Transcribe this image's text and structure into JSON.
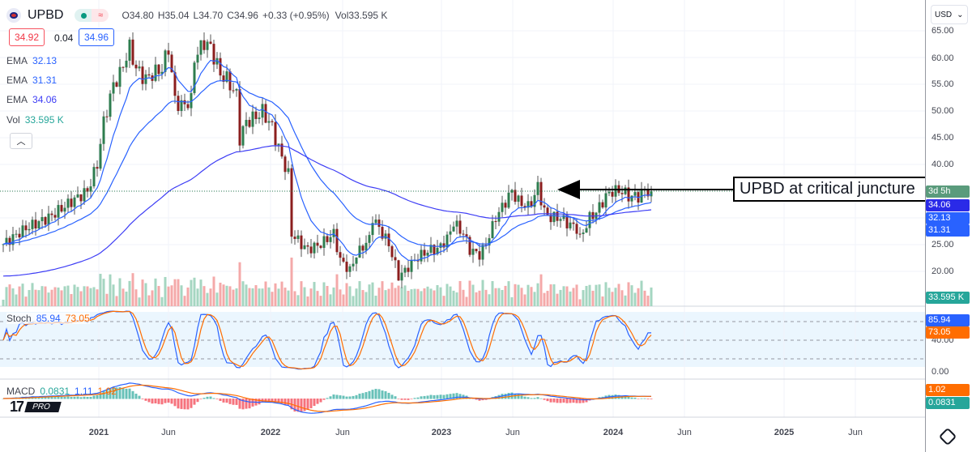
{
  "header": {
    "symbol": "UPBD",
    "ohlc": "O34.80 H35.04 L34.70 C34.96 +0.33 (+0.95%) Vol33.595 K",
    "open": "O34.80",
    "high": "H35.04",
    "low": "L34.70",
    "close": "C34.96",
    "change": "+0.33 (+0.95%)",
    "volume": "Vol33.595 K"
  },
  "quote": {
    "bid": "34.92",
    "spread": "0.04",
    "ask": "34.96"
  },
  "legend": {
    "ema1_label": "EMA",
    "ema1": "32.13",
    "ema2_label": "EMA",
    "ema2": "31.31",
    "ema3_label": "EMA",
    "ema3": "34.06",
    "vol_label": "Vol",
    "vol": "33.595 K",
    "stoch_label": "Stoch",
    "stoch_k": "85.94",
    "stoch_d": "73.05",
    "macd_label": "MACD",
    "macd_hist": "0.0831",
    "macd": "1.11",
    "macd_signal": "1.02"
  },
  "currency": "USD",
  "annotation": "UPBD at critical juncture",
  "logo": "PRO",
  "price_axis": [
    "65.00",
    "60.00",
    "55.00",
    "50.00",
    "45.00",
    "40.00",
    "25.00",
    "20.00"
  ],
  "stoch_axis": [
    "40.00",
    "0.00"
  ],
  "badges": {
    "countdown": "3d 5h",
    "ema3": "34.06",
    "ema1": "32.13",
    "ema2": "31.31",
    "vol": "33.595 K",
    "stoch_k": "85.94",
    "stoch_d": "73.05",
    "macd_signal": "1.02",
    "macd_hist": "0.0831"
  },
  "time_axis": [
    "2021",
    "Jun",
    "2022",
    "Jun",
    "2023",
    "Jun",
    "2024",
    "Jun",
    "2025",
    "Jun"
  ],
  "colors": {
    "up": "#2e7d4f",
    "down": "#8b1e1e",
    "ema": "#2962ff",
    "stoch_k": "#2962ff",
    "stoch_d": "#ff6d00",
    "macd_hist": "#26a69a"
  },
  "chart_data": {
    "type": "candlestick",
    "interval": "weekly",
    "close_keypoints": [
      [
        0,
        25
      ],
      [
        7,
        28
      ],
      [
        14,
        30
      ],
      [
        21,
        33
      ],
      [
        26,
        35
      ],
      [
        29,
        40
      ],
      [
        31,
        48
      ],
      [
        34,
        55
      ],
      [
        36,
        57
      ],
      [
        39,
        62
      ],
      [
        41,
        58
      ],
      [
        44,
        56
      ],
      [
        46,
        57
      ],
      [
        49,
        58
      ],
      [
        51,
        62
      ],
      [
        53,
        52
      ],
      [
        55,
        51
      ],
      [
        58,
        52
      ],
      [
        59,
        60
      ],
      [
        62,
        63
      ],
      [
        64,
        62
      ],
      [
        67,
        57
      ],
      [
        69,
        56
      ],
      [
        72,
        53
      ],
      [
        73,
        45
      ],
      [
        75,
        48
      ],
      [
        78,
        49
      ],
      [
        80,
        50
      ],
      [
        83,
        47
      ],
      [
        85,
        43
      ],
      [
        88,
        38
      ],
      [
        89,
        27
      ],
      [
        92,
        25
      ],
      [
        94,
        24
      ],
      [
        98,
        25
      ],
      [
        102,
        27
      ],
      [
        104,
        22
      ],
      [
        107,
        20
      ],
      [
        109,
        23
      ],
      [
        113,
        26
      ],
      [
        114,
        30
      ],
      [
        117,
        27
      ],
      [
        119,
        25
      ],
      [
        122,
        19
      ],
      [
        124,
        20
      ],
      [
        127,
        22
      ],
      [
        129,
        23
      ],
      [
        132,
        24
      ],
      [
        134,
        24
      ],
      [
        137,
        26
      ],
      [
        139,
        29
      ],
      [
        142,
        27
      ],
      [
        144,
        24
      ],
      [
        147,
        23
      ],
      [
        149,
        25
      ],
      [
        152,
        30
      ],
      [
        154,
        32
      ],
      [
        157,
        35
      ],
      [
        159,
        33
      ],
      [
        162,
        32
      ],
      [
        164,
        34
      ],
      [
        165,
        36
      ],
      [
        167,
        31
      ],
      [
        169,
        30
      ],
      [
        172,
        30
      ],
      [
        174,
        29
      ],
      [
        177,
        28
      ],
      [
        178,
        26
      ],
      [
        181,
        30
      ],
      [
        183,
        31
      ],
      [
        186,
        34
      ],
      [
        188,
        35
      ],
      [
        191,
        35
      ],
      [
        193,
        34
      ],
      [
        196,
        34
      ],
      [
        198,
        35
      ],
      [
        200,
        34.96
      ]
    ],
    "ylim": [
      15,
      67
    ]
  }
}
